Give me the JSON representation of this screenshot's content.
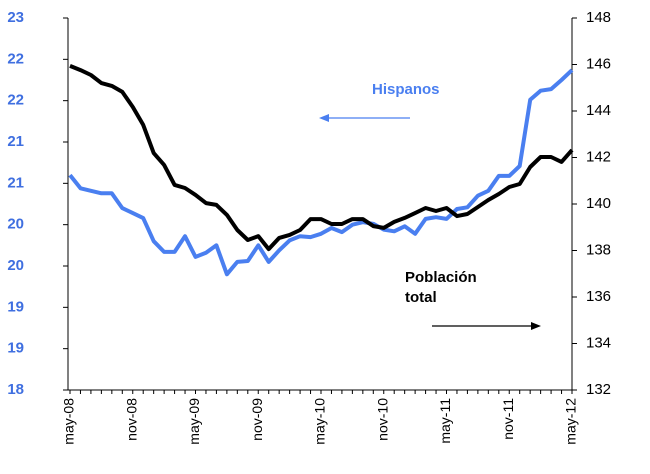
{
  "chart_data": {
    "type": "line",
    "categories": [
      "may-08",
      null,
      null,
      null,
      null,
      null,
      "nov-08",
      null,
      null,
      null,
      null,
      null,
      "may-09",
      null,
      null,
      null,
      null,
      null,
      "nov-09",
      null,
      null,
      null,
      null,
      null,
      "may-10",
      null,
      null,
      null,
      null,
      null,
      "nov-10",
      null,
      null,
      null,
      null,
      null,
      "may-11",
      null,
      null,
      null,
      null,
      null,
      "nov-11",
      null,
      null,
      null,
      null,
      null,
      "may-12"
    ],
    "series": [
      {
        "name": "Hispanos",
        "color": "#4a7ff0",
        "axis": "y",
        "values": [
          20.6,
          20.44,
          20.41,
          20.38,
          20.38,
          20.2,
          20.14,
          20.08,
          19.8,
          19.67,
          19.67,
          19.86,
          19.61,
          19.66,
          19.75,
          19.4,
          19.55,
          19.56,
          19.75,
          19.55,
          19.69,
          19.81,
          19.86,
          19.85,
          19.89,
          19.96,
          19.91,
          20.0,
          20.03,
          20.01,
          19.94,
          19.92,
          19.98,
          19.89,
          20.07,
          20.09,
          20.07,
          20.19,
          20.21,
          20.35,
          20.41,
          20.59,
          20.59,
          20.71,
          21.51,
          21.62,
          21.64,
          21.75,
          21.87
        ]
      },
      {
        "name": "Población total",
        "color": "#000000",
        "axis": "y2",
        "values": [
          145.94,
          145.76,
          145.55,
          145.2,
          145.08,
          144.82,
          144.17,
          143.4,
          142.19,
          141.68,
          140.82,
          140.69,
          140.39,
          140.04,
          139.96,
          139.53,
          138.88,
          138.45,
          138.62,
          138.06,
          138.54,
          138.67,
          138.88,
          139.35,
          139.35,
          139.14,
          139.14,
          139.35,
          139.35,
          139.05,
          138.97,
          139.23,
          139.4,
          139.61,
          139.83,
          139.7,
          139.83,
          139.48,
          139.57,
          139.87,
          140.17,
          140.43,
          140.73,
          140.86,
          141.59,
          142.02,
          142.02,
          141.81,
          142.32
        ]
      }
    ],
    "ylim": [
      18,
      22.5
    ],
    "yticks": [
      18,
      {
        "value": 18.5,
        "label": "19"
      },
      19,
      {
        "value": 19.5,
        "label": "20"
      },
      20,
      {
        "value": 20.5,
        "label": "21"
      },
      21,
      {
        "value": 21.5,
        "label": "22"
      },
      22,
      {
        "value": 22.5,
        "label": "23"
      }
    ],
    "y2lim": [
      132,
      148
    ],
    "y2ticks": [
      132,
      134,
      136,
      138,
      140,
      142,
      144,
      146,
      148
    ],
    "annotations": [
      {
        "lines": [
          "Hispanos"
        ],
        "color": "#4a7ff0"
      },
      {
        "lines": [
          "Población",
          "total"
        ],
        "color": "#000000"
      }
    ]
  }
}
